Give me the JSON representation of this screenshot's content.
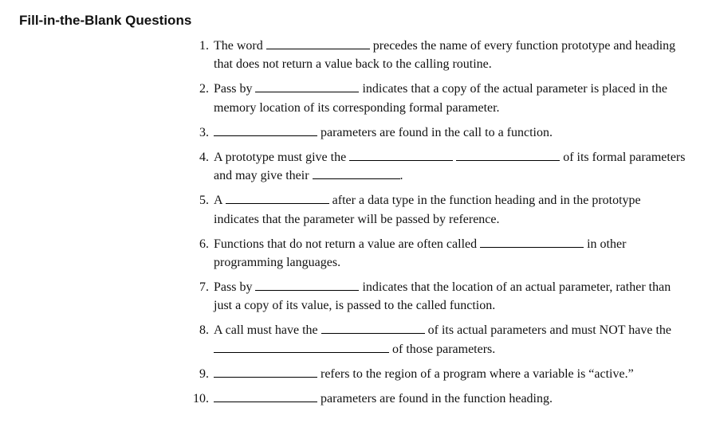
{
  "heading": "Fill-in-the-Blank Questions",
  "questions": {
    "q1": {
      "t1": "The word ",
      "t2": " precedes the name of every function proto­type and heading that does not return a value back to the calling routine."
    },
    "q2": {
      "t1": "Pass by ",
      "t2": " indicates that a copy of the actual parameter is placed in the memory location of its corresponding formal parameter."
    },
    "q3": {
      "t1": "",
      "t2": " parameters are found in the call to a function."
    },
    "q4": {
      "t1": "A prototype must give the ",
      "t2": " ",
      "t3": " of its formal parameters and may give their ",
      "t4": "."
    },
    "q5": {
      "t1": "A ",
      "t2": " after a data type in the function heading and in the prototype indicates that the parameter will be passed by reference."
    },
    "q6": {
      "t1": "Functions that do not return a value are often called ",
      "t2": " in other programming languages."
    },
    "q7": {
      "t1": "Pass by ",
      "t2": " indicates that the location of an actual parame­ter, rather than just a copy of its value, is passed to the called function."
    },
    "q8": {
      "t1": "A call must have the ",
      "t2": " of its actual parameters and must NOT have the ",
      "t3": " of those parameters."
    },
    "q9": {
      "t1": "",
      "t2": " refers to the region of a program where a variable is “active.”"
    },
    "q10": {
      "t1": "",
      "t2": " parameters are found in the function heading."
    }
  }
}
